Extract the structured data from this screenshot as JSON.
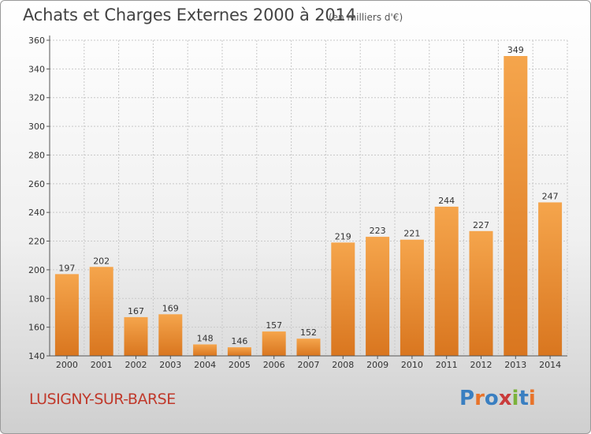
{
  "header": {
    "title": "Achats et Charges Externes 2000 à 2014",
    "subtitle": "(en milliers d'€)"
  },
  "footer": {
    "commune": "LUSIGNY-SUR-BARSE",
    "logo_text": "Proxiti",
    "logo_colors": [
      "#3a7fc1",
      "#e8732a",
      "#3a7fc1",
      "#c93b3b",
      "#7bb23b",
      "#3a7fc1",
      "#e8732a"
    ]
  },
  "colors": {
    "bar_top": "#f5a54c",
    "bar_bottom": "#d9761f",
    "grid": "#c8c8c8",
    "axis": "#555555",
    "commune_text": "#c0392b"
  },
  "chart_data": {
    "type": "bar",
    "title": "Achats et Charges Externes 2000 à 2014",
    "subtitle": "(en milliers d'€)",
    "xlabel": "",
    "ylabel": "",
    "categories": [
      "2000",
      "2001",
      "2002",
      "2003",
      "2004",
      "2005",
      "2006",
      "2007",
      "2008",
      "2009",
      "2010",
      "2011",
      "2012",
      "2013",
      "2014"
    ],
    "values": [
      197,
      202,
      167,
      169,
      148,
      146,
      157,
      152,
      219,
      223,
      221,
      244,
      227,
      349,
      247
    ],
    "ylim": [
      140,
      360
    ],
    "yticks": [
      140,
      160,
      180,
      200,
      220,
      240,
      260,
      280,
      300,
      320,
      340,
      360
    ],
    "grid": true,
    "data_labels": true
  }
}
